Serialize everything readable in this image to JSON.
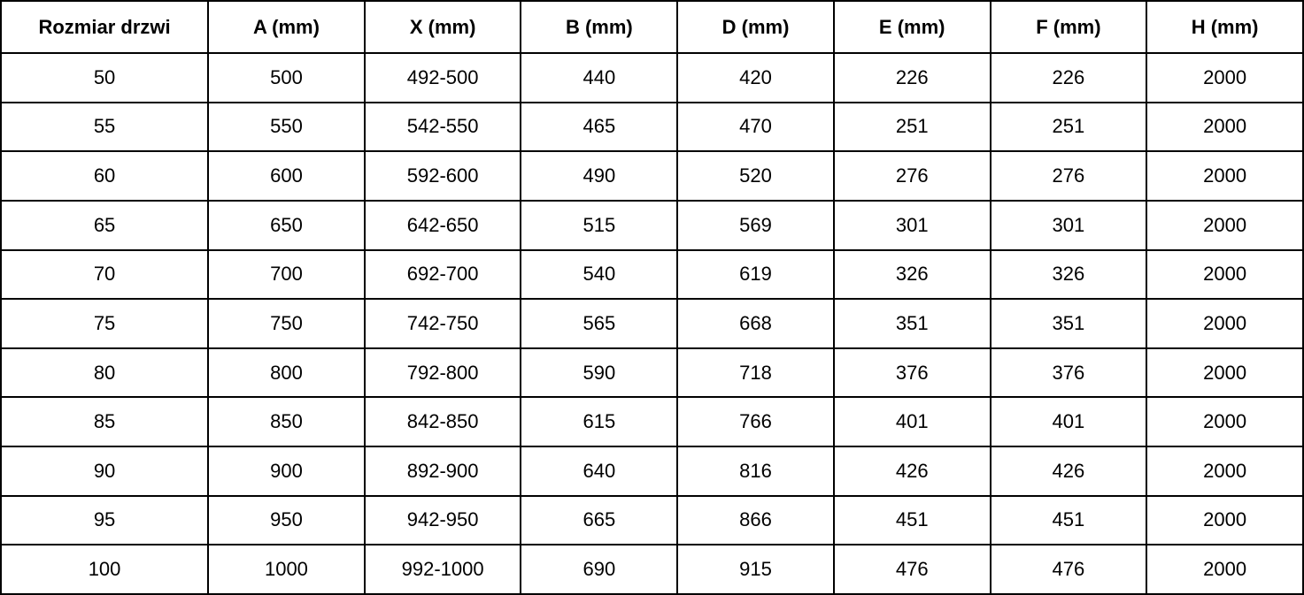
{
  "table": {
    "columns": [
      "Rozmiar drzwi",
      "A (mm)",
      "X (mm)",
      "B (mm)",
      "D (mm)",
      "E (mm)",
      "F (mm)",
      "H (mm)"
    ],
    "rows": [
      [
        "50",
        "500",
        "492-500",
        "440",
        "420",
        "226",
        "226",
        "2000"
      ],
      [
        "55",
        "550",
        "542-550",
        "465",
        "470",
        "251",
        "251",
        "2000"
      ],
      [
        "60",
        "600",
        "592-600",
        "490",
        "520",
        "276",
        "276",
        "2000"
      ],
      [
        "65",
        "650",
        "642-650",
        "515",
        "569",
        "301",
        "301",
        "2000"
      ],
      [
        "70",
        "700",
        "692-700",
        "540",
        "619",
        "326",
        "326",
        "2000"
      ],
      [
        "75",
        "750",
        "742-750",
        "565",
        "668",
        "351",
        "351",
        "2000"
      ],
      [
        "80",
        "800",
        "792-800",
        "590",
        "718",
        "376",
        "376",
        "2000"
      ],
      [
        "85",
        "850",
        "842-850",
        "615",
        "766",
        "401",
        "401",
        "2000"
      ],
      [
        "90",
        "900",
        "892-900",
        "640",
        "816",
        "426",
        "426",
        "2000"
      ],
      [
        "95",
        "950",
        "942-950",
        "665",
        "866",
        "451",
        "451",
        "2000"
      ],
      [
        "100",
        "1000",
        "992-1000",
        "690",
        "915",
        "476",
        "476",
        "2000"
      ]
    ]
  },
  "colors": {
    "text": "#000000",
    "border": "#000000",
    "background": "#ffffff"
  },
  "chart_data": {
    "type": "table",
    "title": "",
    "columns": [
      "Rozmiar drzwi",
      "A (mm)",
      "X (mm)",
      "B (mm)",
      "D (mm)",
      "E (mm)",
      "F (mm)",
      "H (mm)"
    ],
    "rows": [
      [
        "50",
        "500",
        "492-500",
        "440",
        "420",
        "226",
        "226",
        "2000"
      ],
      [
        "55",
        "550",
        "542-550",
        "465",
        "470",
        "251",
        "251",
        "2000"
      ],
      [
        "60",
        "600",
        "592-600",
        "490",
        "520",
        "276",
        "276",
        "2000"
      ],
      [
        "65",
        "650",
        "642-650",
        "515",
        "569",
        "301",
        "301",
        "2000"
      ],
      [
        "70",
        "700",
        "692-700",
        "540",
        "619",
        "326",
        "326",
        "2000"
      ],
      [
        "75",
        "750",
        "742-750",
        "565",
        "668",
        "351",
        "351",
        "2000"
      ],
      [
        "80",
        "800",
        "792-800",
        "590",
        "718",
        "376",
        "376",
        "2000"
      ],
      [
        "85",
        "850",
        "842-850",
        "615",
        "766",
        "401",
        "401",
        "2000"
      ],
      [
        "90",
        "900",
        "892-900",
        "640",
        "816",
        "426",
        "426",
        "2000"
      ],
      [
        "95",
        "950",
        "942-950",
        "665",
        "866",
        "451",
        "451",
        "2000"
      ],
      [
        "100",
        "1000",
        "992-1000",
        "690",
        "915",
        "476",
        "476",
        "2000"
      ]
    ]
  }
}
